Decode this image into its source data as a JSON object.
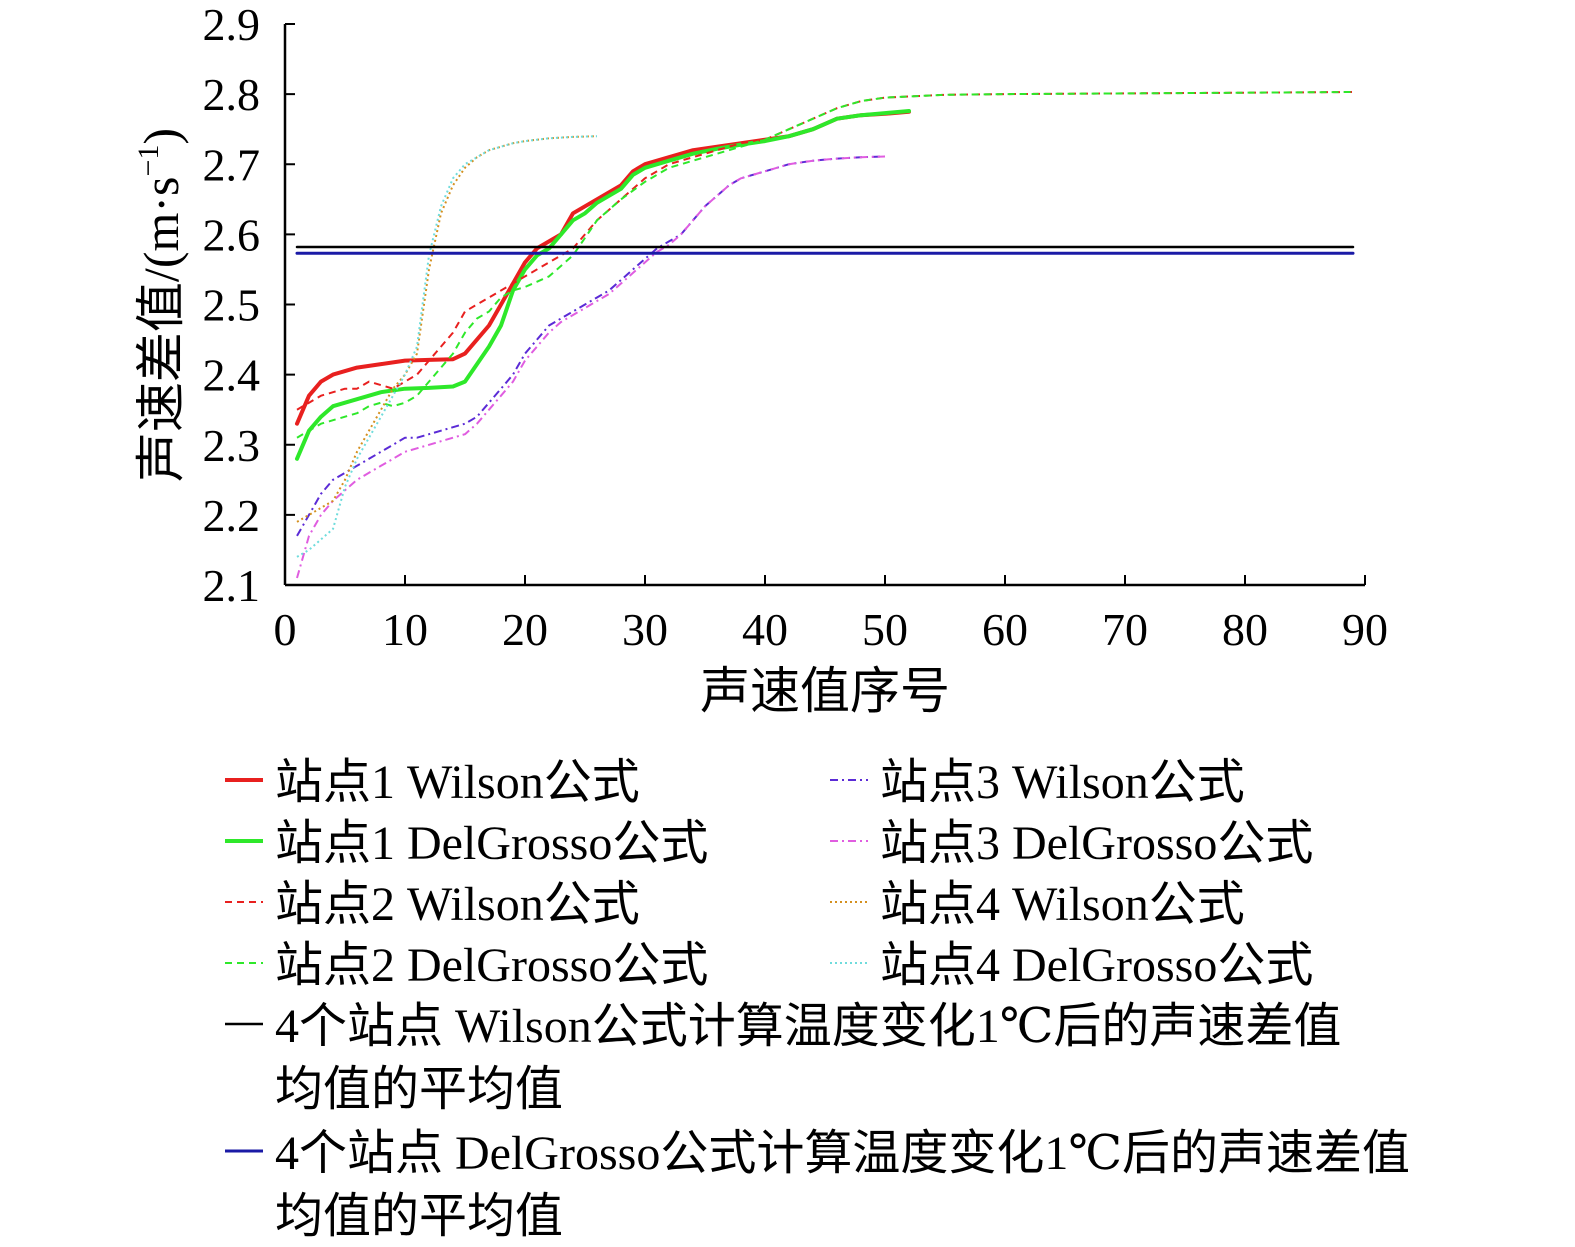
{
  "chart_data": {
    "type": "line",
    "xlabel": "声速值序号",
    "ylabel_main": "声速差值/(m·s",
    "ylabel_sup": "−1",
    "ylabel_close": ")",
    "xlim": [
      0,
      90
    ],
    "ylim": [
      2.1,
      2.9
    ],
    "xticks": [
      "0",
      "10",
      "20",
      "30",
      "40",
      "50",
      "60",
      "70",
      "80",
      "90"
    ],
    "yticks": [
      "2.1",
      "2.2",
      "2.3",
      "2.4",
      "2.5",
      "2.6",
      "2.7",
      "2.8",
      "2.9"
    ],
    "grid": false,
    "legend_position": "bottom",
    "series": [
      {
        "name": "站点1 Wilson公式",
        "color": "#e8201f",
        "style": "solid",
        "width": 4,
        "points": [
          [
            1,
            2.33
          ],
          [
            2,
            2.37
          ],
          [
            3,
            2.39
          ],
          [
            4,
            2.4
          ],
          [
            5,
            2.405
          ],
          [
            6,
            2.41
          ],
          [
            8,
            2.415
          ],
          [
            10,
            2.42
          ],
          [
            12,
            2.421
          ],
          [
            14,
            2.422
          ],
          [
            15,
            2.43
          ],
          [
            17,
            2.47
          ],
          [
            18,
            2.5
          ],
          [
            19,
            2.53
          ],
          [
            20,
            2.56
          ],
          [
            21,
            2.58
          ],
          [
            22,
            2.59
          ],
          [
            23,
            2.6
          ],
          [
            24,
            2.63
          ],
          [
            25,
            2.64
          ],
          [
            26,
            2.65
          ],
          [
            27,
            2.66
          ],
          [
            28,
            2.67
          ],
          [
            29,
            2.69
          ],
          [
            30,
            2.7
          ],
          [
            32,
            2.71
          ],
          [
            34,
            2.72
          ],
          [
            36,
            2.725
          ],
          [
            38,
            2.73
          ],
          [
            40,
            2.735
          ],
          [
            42,
            2.74
          ],
          [
            44,
            2.75
          ],
          [
            46,
            2.765
          ],
          [
            48,
            2.77
          ],
          [
            50,
            2.772
          ],
          [
            52,
            2.775
          ]
        ]
      },
      {
        "name": "站点1 DelGrosso公式",
        "color": "#2ee82a",
        "style": "solid",
        "width": 4,
        "points": [
          [
            1,
            2.28
          ],
          [
            2,
            2.32
          ],
          [
            3,
            2.34
          ],
          [
            4,
            2.355
          ],
          [
            5,
            2.36
          ],
          [
            6,
            2.365
          ],
          [
            8,
            2.375
          ],
          [
            10,
            2.38
          ],
          [
            12,
            2.381
          ],
          [
            14,
            2.383
          ],
          [
            15,
            2.39
          ],
          [
            17,
            2.44
          ],
          [
            18,
            2.47
          ],
          [
            19,
            2.52
          ],
          [
            20,
            2.55
          ],
          [
            21,
            2.57
          ],
          [
            22,
            2.58
          ],
          [
            23,
            2.6
          ],
          [
            24,
            2.62
          ],
          [
            25,
            2.63
          ],
          [
            26,
            2.645
          ],
          [
            27,
            2.655
          ],
          [
            28,
            2.665
          ],
          [
            29,
            2.685
          ],
          [
            30,
            2.695
          ],
          [
            32,
            2.705
          ],
          [
            34,
            2.715
          ],
          [
            36,
            2.722
          ],
          [
            38,
            2.728
          ],
          [
            40,
            2.733
          ],
          [
            42,
            2.74
          ],
          [
            44,
            2.75
          ],
          [
            46,
            2.765
          ],
          [
            48,
            2.77
          ],
          [
            50,
            2.773
          ],
          [
            52,
            2.776
          ]
        ]
      },
      {
        "name": "站点2 Wilson公式",
        "color": "#e8201f",
        "style": "dash",
        "width": 2,
        "points": [
          [
            1,
            2.35
          ],
          [
            2,
            2.36
          ],
          [
            3,
            2.37
          ],
          [
            4,
            2.375
          ],
          [
            5,
            2.38
          ],
          [
            6,
            2.38
          ],
          [
            7,
            2.39
          ],
          [
            8,
            2.385
          ],
          [
            9,
            2.38
          ],
          [
            10,
            2.39
          ],
          [
            11,
            2.4
          ],
          [
            12,
            2.42
          ],
          [
            13,
            2.44
          ],
          [
            14,
            2.46
          ],
          [
            15,
            2.49
          ],
          [
            16,
            2.5
          ],
          [
            17,
            2.51
          ],
          [
            18,
            2.52
          ],
          [
            19,
            2.53
          ],
          [
            20,
            2.54
          ],
          [
            22,
            2.56
          ],
          [
            24,
            2.58
          ],
          [
            26,
            2.62
          ],
          [
            28,
            2.65
          ],
          [
            30,
            2.68
          ],
          [
            32,
            2.7
          ],
          [
            34,
            2.71
          ],
          [
            36,
            2.72
          ],
          [
            38,
            2.73
          ],
          [
            40,
            2.735
          ],
          [
            42,
            2.75
          ],
          [
            44,
            2.765
          ],
          [
            46,
            2.78
          ],
          [
            48,
            2.79
          ],
          [
            50,
            2.795
          ],
          [
            55,
            2.799
          ],
          [
            60,
            2.8
          ],
          [
            70,
            2.801
          ],
          [
            80,
            2.802
          ],
          [
            89,
            2.803
          ]
        ]
      },
      {
        "name": "站点2 DelGrosso公式",
        "color": "#2ee82a",
        "style": "dash",
        "width": 2,
        "points": [
          [
            1,
            2.31
          ],
          [
            2,
            2.32
          ],
          [
            3,
            2.33
          ],
          [
            4,
            2.335
          ],
          [
            5,
            2.34
          ],
          [
            6,
            2.345
          ],
          [
            7,
            2.355
          ],
          [
            8,
            2.36
          ],
          [
            9,
            2.355
          ],
          [
            10,
            2.36
          ],
          [
            11,
            2.37
          ],
          [
            12,
            2.39
          ],
          [
            13,
            2.41
          ],
          [
            14,
            2.43
          ],
          [
            15,
            2.46
          ],
          [
            16,
            2.48
          ],
          [
            17,
            2.49
          ],
          [
            18,
            2.51
          ],
          [
            19,
            2.52
          ],
          [
            20,
            2.525
          ],
          [
            22,
            2.54
          ],
          [
            24,
            2.57
          ],
          [
            26,
            2.62
          ],
          [
            28,
            2.65
          ],
          [
            30,
            2.675
          ],
          [
            32,
            2.695
          ],
          [
            34,
            2.705
          ],
          [
            36,
            2.715
          ],
          [
            38,
            2.725
          ],
          [
            40,
            2.735
          ],
          [
            42,
            2.75
          ],
          [
            44,
            2.765
          ],
          [
            46,
            2.78
          ],
          [
            48,
            2.79
          ],
          [
            50,
            2.795
          ],
          [
            55,
            2.799
          ],
          [
            60,
            2.8
          ],
          [
            70,
            2.801
          ],
          [
            80,
            2.802
          ],
          [
            89,
            2.803
          ]
        ]
      },
      {
        "name": "站点3 Wilson公式",
        "color": "#5b2bd6",
        "style": "dashdot",
        "width": 2,
        "points": [
          [
            1,
            2.17
          ],
          [
            2,
            2.2
          ],
          [
            3,
            2.23
          ],
          [
            4,
            2.25
          ],
          [
            5,
            2.26
          ],
          [
            6,
            2.27
          ],
          [
            7,
            2.28
          ],
          [
            8,
            2.29
          ],
          [
            9,
            2.3
          ],
          [
            10,
            2.31
          ],
          [
            11,
            2.31
          ],
          [
            12,
            2.315
          ],
          [
            13,
            2.32
          ],
          [
            14,
            2.325
          ],
          [
            15,
            2.33
          ],
          [
            16,
            2.34
          ],
          [
            17,
            2.36
          ],
          [
            18,
            2.38
          ],
          [
            19,
            2.4
          ],
          [
            20,
            2.43
          ],
          [
            21,
            2.45
          ],
          [
            22,
            2.47
          ],
          [
            23,
            2.48
          ],
          [
            24,
            2.49
          ],
          [
            25,
            2.5
          ],
          [
            26,
            2.51
          ],
          [
            27,
            2.52
          ],
          [
            28,
            2.535
          ],
          [
            29,
            2.55
          ],
          [
            30,
            2.565
          ],
          [
            31,
            2.58
          ],
          [
            32,
            2.59
          ],
          [
            33,
            2.6
          ],
          [
            34,
            2.62
          ],
          [
            35,
            2.64
          ],
          [
            36,
            2.655
          ],
          [
            37,
            2.67
          ],
          [
            38,
            2.68
          ],
          [
            40,
            2.69
          ],
          [
            42,
            2.7
          ],
          [
            44,
            2.705
          ],
          [
            46,
            2.708
          ],
          [
            48,
            2.71
          ],
          [
            50,
            2.711
          ]
        ]
      },
      {
        "name": "站点3 DelGrosso公式",
        "color": "#e05de0",
        "style": "dashdot",
        "width": 2,
        "points": [
          [
            1,
            2.11
          ],
          [
            2,
            2.17
          ],
          [
            3,
            2.2
          ],
          [
            4,
            2.22
          ],
          [
            5,
            2.235
          ],
          [
            6,
            2.25
          ],
          [
            7,
            2.26
          ],
          [
            8,
            2.27
          ],
          [
            9,
            2.28
          ],
          [
            10,
            2.29
          ],
          [
            11,
            2.295
          ],
          [
            12,
            2.3
          ],
          [
            13,
            2.305
          ],
          [
            14,
            2.31
          ],
          [
            15,
            2.315
          ],
          [
            16,
            2.33
          ],
          [
            17,
            2.35
          ],
          [
            18,
            2.37
          ],
          [
            19,
            2.39
          ],
          [
            20,
            2.42
          ],
          [
            21,
            2.44
          ],
          [
            22,
            2.46
          ],
          [
            23,
            2.475
          ],
          [
            24,
            2.485
          ],
          [
            25,
            2.495
          ],
          [
            26,
            2.505
          ],
          [
            27,
            2.515
          ],
          [
            28,
            2.53
          ],
          [
            29,
            2.545
          ],
          [
            30,
            2.56
          ],
          [
            31,
            2.575
          ],
          [
            32,
            2.585
          ],
          [
            33,
            2.6
          ],
          [
            34,
            2.62
          ],
          [
            35,
            2.64
          ],
          [
            36,
            2.655
          ],
          [
            37,
            2.67
          ],
          [
            38,
            2.68
          ],
          [
            40,
            2.69
          ],
          [
            42,
            2.7
          ],
          [
            44,
            2.705
          ],
          [
            46,
            2.708
          ],
          [
            48,
            2.71
          ],
          [
            50,
            2.711
          ]
        ]
      },
      {
        "name": "站点4 Wilson公式",
        "color": "#d4901f",
        "style": "dot",
        "width": 2,
        "points": [
          [
            1,
            2.19
          ],
          [
            2,
            2.2
          ],
          [
            3,
            2.21
          ],
          [
            4,
            2.22
          ],
          [
            5,
            2.25
          ],
          [
            6,
            2.29
          ],
          [
            7,
            2.32
          ],
          [
            8,
            2.35
          ],
          [
            9,
            2.38
          ],
          [
            10,
            2.4
          ],
          [
            11,
            2.43
          ],
          [
            12,
            2.55
          ],
          [
            13,
            2.63
          ],
          [
            14,
            2.67
          ],
          [
            15,
            2.695
          ],
          [
            16,
            2.71
          ],
          [
            17,
            2.72
          ],
          [
            18,
            2.725
          ],
          [
            19,
            2.73
          ],
          [
            20,
            2.733
          ],
          [
            22,
            2.737
          ],
          [
            24,
            2.739
          ],
          [
            26,
            2.74
          ]
        ]
      },
      {
        "name": "站点4 DelGrosso公式",
        "color": "#6fdcdc",
        "style": "dot",
        "width": 2,
        "points": [
          [
            1,
            2.14
          ],
          [
            2,
            2.15
          ],
          [
            3,
            2.165
          ],
          [
            4,
            2.18
          ],
          [
            5,
            2.24
          ],
          [
            6,
            2.28
          ],
          [
            7,
            2.31
          ],
          [
            8,
            2.34
          ],
          [
            9,
            2.37
          ],
          [
            10,
            2.4
          ],
          [
            11,
            2.44
          ],
          [
            12,
            2.57
          ],
          [
            13,
            2.64
          ],
          [
            14,
            2.68
          ],
          [
            15,
            2.7
          ],
          [
            16,
            2.71
          ],
          [
            17,
            2.72
          ],
          [
            18,
            2.725
          ],
          [
            19,
            2.73
          ],
          [
            20,
            2.733
          ],
          [
            22,
            2.737
          ],
          [
            24,
            2.739
          ],
          [
            26,
            2.74
          ]
        ]
      },
      {
        "name": "4个站点 Wilson公式计算温度变化1℃后的声速差值均值的平均值",
        "color": "#000000",
        "style": "solid",
        "width": 2.5,
        "points": [
          [
            1,
            2.582
          ],
          [
            89,
            2.582
          ]
        ]
      },
      {
        "name": "4个站点 DelGrosso公式计算温度变化1℃后的声速差值均值的平均值",
        "color": "#1a1aa6",
        "style": "solid",
        "width": 3,
        "points": [
          [
            1,
            2.573
          ],
          [
            89,
            2.573
          ]
        ]
      }
    ],
    "legend": {
      "entries": [
        {
          "label": "站点1 Wilson公式",
          "series": 0
        },
        {
          "label": "站点1 DelGrosso公式",
          "series": 1
        },
        {
          "label": "站点2 Wilson公式",
          "series": 2
        },
        {
          "label": "站点2 DelGrosso公式",
          "series": 3
        },
        {
          "label": "站点3 Wilson公式",
          "series": 4
        },
        {
          "label": "站点3 DelGrosso公式",
          "series": 5
        },
        {
          "label": "站点4 Wilson公式",
          "series": 6
        },
        {
          "label": "站点4 DelGrosso公式",
          "series": 7
        }
      ],
      "long_entries": [
        {
          "line1": "4个站点 Wilson公式计算温度变化1℃后的声速差值",
          "line2": "均值的平均值",
          "series": 8
        },
        {
          "line1": "4个站点 DelGrosso公式计算温度变化1℃后的声速差值",
          "line2": "均值的平均值",
          "series": 9
        }
      ]
    }
  }
}
